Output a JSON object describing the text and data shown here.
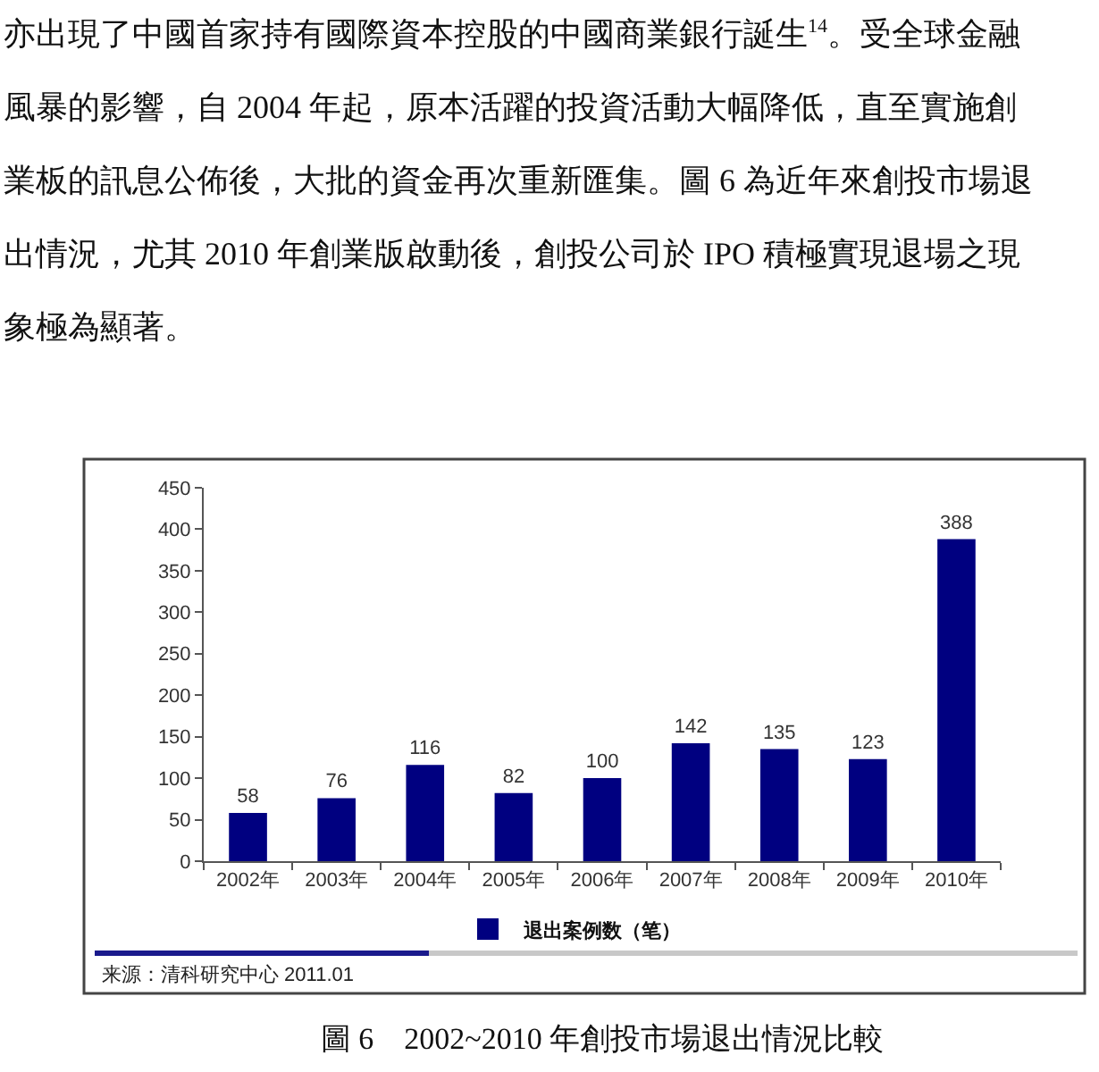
{
  "chart_data": {
    "type": "bar",
    "title": "圖 6　2002~2010 年創投市場退出情況比較",
    "categories": [
      "2002年",
      "2003年",
      "2004年",
      "2005年",
      "2006年",
      "2007年",
      "2008年",
      "2009年",
      "2010年"
    ],
    "series": [
      {
        "name": "退出案例数（笔）",
        "color": "#000080",
        "values": [
          58,
          76,
          116,
          82,
          100,
          142,
          135,
          123,
          388
        ]
      }
    ],
    "ylim": [
      0,
      450
    ],
    "yticks": [
      0,
      50,
      100,
      150,
      200,
      250,
      300,
      350,
      400,
      450
    ],
    "data_labels": true,
    "grid": false,
    "legend": "bottom",
    "annotations": [
      "亦出現了中國首家持有國際資本控股的中國商業銀行誕生$^{14}$。受全球金融",
      "風暴的影響，自 2004 年起，原本活躍的投資活動大幅降低，直至實施創",
      "業板的訊息公佈後，大批的資金再次重新匯集。圖 6 為近年來創投市場退",
      "出情況，尤其 2010 年創業版啟動後，創投公司於 IPO 積極實現退場之現",
      "象極為顯著。",
      "来源：清科研究中心 2011.01"
    ]
  }
}
